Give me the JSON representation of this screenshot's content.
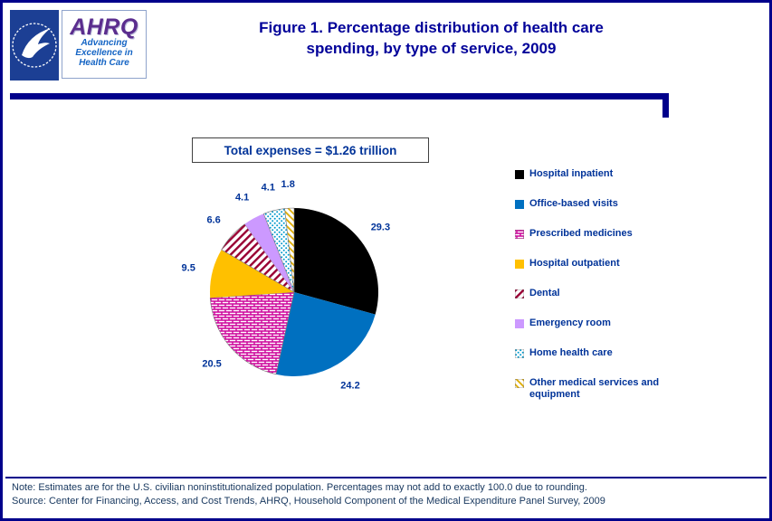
{
  "header": {
    "title_line1": "Figure 1. Percentage distribution of health care",
    "title_line2": "spending, by type of service, 2009",
    "logo": {
      "ahrq_wordmark": "AHRQ",
      "tagline_line1": "Advancing",
      "tagline_line2": "Excellence in",
      "tagline_line3": "Health Care"
    }
  },
  "total_box": {
    "label": "Total expenses = $1.26 trillion"
  },
  "chart_data": {
    "type": "pie",
    "title": "Figure 1. Percentage distribution of health care spending, by type of service, 2009",
    "units": "percent",
    "total_label": "Total expenses = $1.26 trillion",
    "start_angle_deg": 0,
    "direction": "clockwise",
    "legend_position": "right",
    "slices": [
      {
        "label": "Hospital inpatient",
        "value": 29.3,
        "color": "#000000",
        "pattern": "solid"
      },
      {
        "label": "Office-based visits",
        "value": 24.2,
        "color": "#0070C0",
        "pattern": "solid"
      },
      {
        "label": "Prescribed medicines",
        "value": 20.5,
        "color": "#CC0099",
        "pattern": "bricks"
      },
      {
        "label": "Hospital outpatient",
        "value": 9.5,
        "color": "#FFC000",
        "pattern": "solid"
      },
      {
        "label": "Dental",
        "value": 6.6,
        "color": "#990033",
        "pattern": "diagonal-stripes"
      },
      {
        "label": "Emergency room",
        "value": 4.1,
        "color": "#CC99FF",
        "pattern": "solid"
      },
      {
        "label": "Home health care",
        "value": 4.1,
        "color": "#0099CC",
        "pattern": "dots"
      },
      {
        "label": "Other medical services and equipment",
        "value": 1.8,
        "color": "#DDAA00",
        "pattern": "thin-diagonal"
      }
    ]
  },
  "footer": {
    "note": "Note: Estimates are for the U.S. civilian noninstitutionalized population. Percentages may not add to exactly 100.0 due to rounding.",
    "source": "Source: Center for Financing, Access, and Cost Trends, AHRQ, Household Component of the Medical Expenditure Panel Survey, 2009"
  },
  "colors": {
    "page_border": "#00008B",
    "title_text": "#000099",
    "legend_text": "#003399",
    "note_text": "#17375E",
    "hhs_blue": "#1C3F94",
    "ahrq_purple": "#5B2D8E",
    "ahrq_tagline_blue": "#1464C4"
  }
}
